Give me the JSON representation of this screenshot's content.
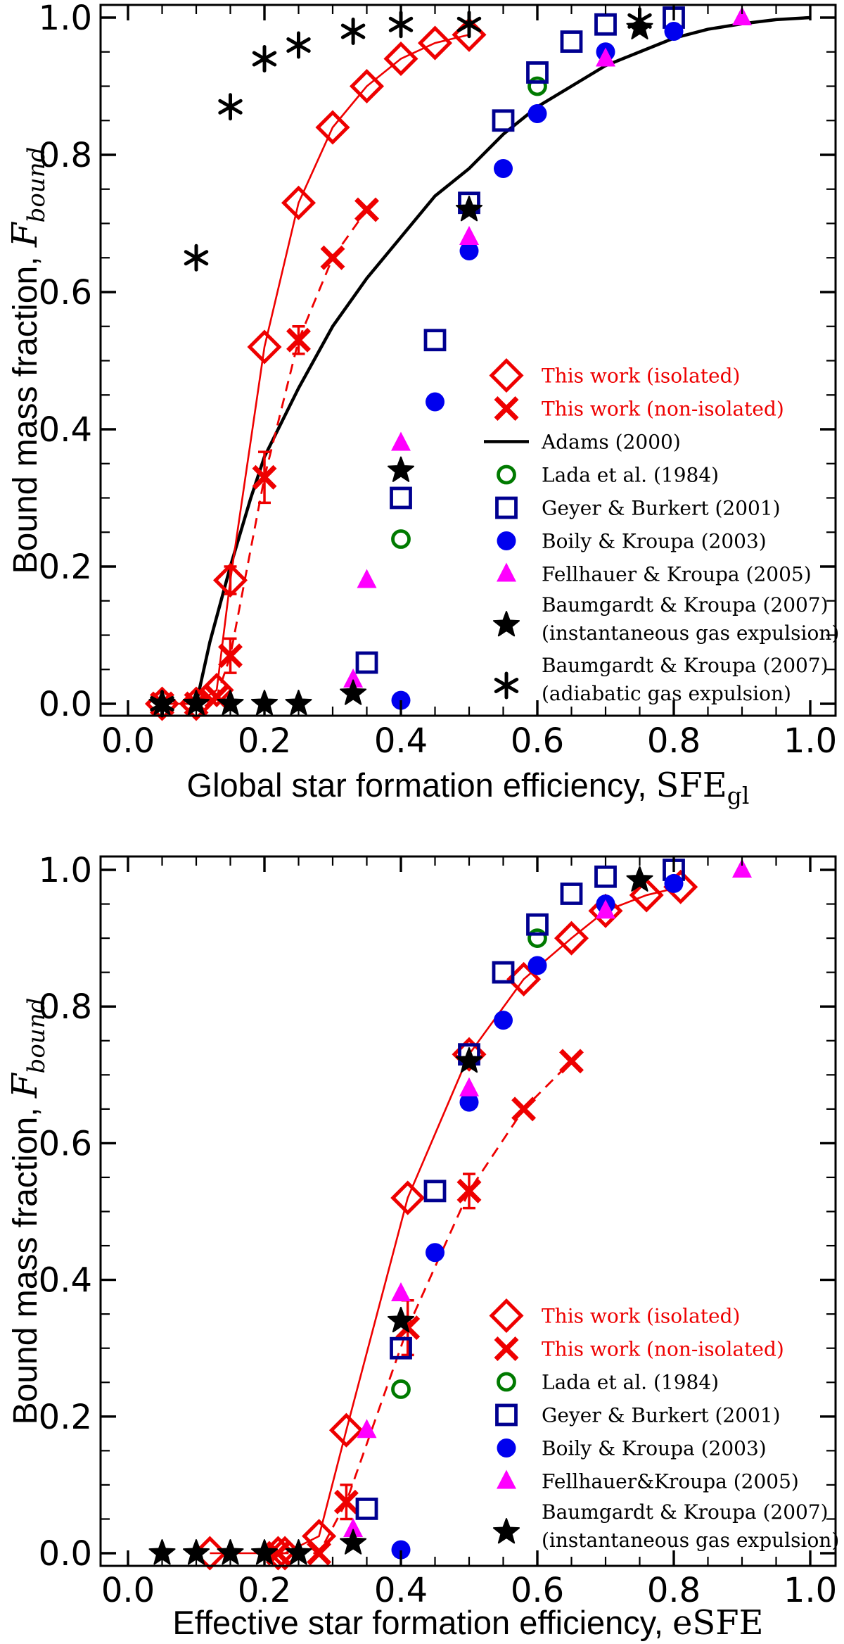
{
  "figure": {
    "background": "#ffffff",
    "colors": {
      "this_work_red": "#ee0000",
      "adams_black": "#000000",
      "lada_green": "#007a00",
      "geyer_navy": "#000090",
      "boily_blue": "#0000ee",
      "fellhauer_magenta": "#ff00ff",
      "baumgardt_black": "#000000",
      "frame": "#000000"
    }
  },
  "chart_data": [
    {
      "type": "scatter",
      "panel": "top",
      "title": "",
      "xlabel_prefix": "Global star formation efficiency, ",
      "xlabel_math": "SFE",
      "xlabel_sub": "gl",
      "ylabel_prefix": "Bound mass fraction, ",
      "ylabel_math": "F",
      "ylabel_sub": "bound",
      "xlim": [
        -0.04,
        1.037
      ],
      "ylim": [
        -0.018,
        1.019
      ],
      "xticks": [
        0.0,
        0.2,
        0.4,
        0.6,
        0.8,
        1.0
      ],
      "xtick_labels": [
        "0.0",
        "0.2",
        "0.4",
        "0.6",
        "0.8",
        "1.0"
      ],
      "yticks": [
        0.0,
        0.2,
        0.4,
        0.6,
        0.8,
        1.0
      ],
      "ytick_labels": [
        "0.0",
        "0.2",
        "0.4",
        "0.6",
        "0.8",
        "1.0"
      ],
      "minor_tick_step": 0.05,
      "grid": false,
      "legend_position": "lower right",
      "series": [
        {
          "name": "Adams (2000)",
          "marker": null,
          "color": "#000000",
          "line": "solid",
          "line_width": 4.5,
          "points": [
            [
              0.1,
              0.0
            ],
            [
              0.12,
              0.09
            ],
            [
              0.15,
              0.2
            ],
            [
              0.18,
              0.3
            ],
            [
              0.2,
              0.36
            ],
            [
              0.25,
              0.46
            ],
            [
              0.3,
              0.55
            ],
            [
              0.35,
              0.62
            ],
            [
              0.4,
              0.68
            ],
            [
              0.45,
              0.74
            ],
            [
              0.5,
              0.78
            ],
            [
              0.55,
              0.83
            ],
            [
              0.6,
              0.87
            ],
            [
              0.65,
              0.9
            ],
            [
              0.7,
              0.93
            ],
            [
              0.75,
              0.95
            ],
            [
              0.8,
              0.97
            ],
            [
              0.85,
              0.983
            ],
            [
              0.9,
              0.991
            ],
            [
              0.95,
              0.997
            ],
            [
              1.0,
              1.0
            ]
          ]
        },
        {
          "name": "This work (isolated)",
          "marker": "diamond",
          "color": "#ee0000",
          "line": "solid",
          "line_width": 2.6,
          "points": [
            [
              0.05,
              0.0
            ],
            [
              0.1,
              0.0
            ],
            [
              0.13,
              0.02
            ],
            [
              0.15,
              0.18
            ],
            [
              0.2,
              0.52
            ],
            [
              0.25,
              0.73
            ],
            [
              0.3,
              0.84
            ],
            [
              0.35,
              0.9
            ],
            [
              0.4,
              0.94
            ],
            [
              0.45,
              0.963
            ],
            [
              0.5,
              0.975
            ]
          ],
          "error_bars": [
            [
              0.15,
              0.18,
              0.02
            ]
          ]
        },
        {
          "name": "This work (non-isolated)",
          "marker": "cross",
          "color": "#ee0000",
          "line": "dashed",
          "line_width": 2.8,
          "points": [
            [
              0.05,
              0.0
            ],
            [
              0.1,
              0.0
            ],
            [
              0.13,
              0.01
            ],
            [
              0.15,
              0.07
            ],
            [
              0.2,
              0.33
            ],
            [
              0.25,
              0.53
            ],
            [
              0.3,
              0.65
            ],
            [
              0.35,
              0.72
            ]
          ],
          "error_bars": [
            [
              0.15,
              0.07,
              0.025
            ],
            [
              0.2,
              0.33,
              0.037
            ],
            [
              0.25,
              0.53,
              0.02
            ]
          ]
        },
        {
          "name": "Lada et al. (1984)",
          "marker": "circle-open",
          "color": "#007a00",
          "line": null,
          "points": [
            [
              0.4,
              0.24
            ],
            [
              0.6,
              0.9
            ]
          ]
        },
        {
          "name": "Geyer & Burkert (2001)",
          "marker": "square-open",
          "color": "#000090",
          "line": null,
          "points": [
            [
              0.35,
              0.06
            ],
            [
              0.4,
              0.3
            ],
            [
              0.45,
              0.53
            ],
            [
              0.5,
              0.73
            ],
            [
              0.55,
              0.85
            ],
            [
              0.6,
              0.92
            ],
            [
              0.65,
              0.965
            ],
            [
              0.7,
              0.99
            ],
            [
              0.8,
              1.0
            ]
          ]
        },
        {
          "name": "Boily & Kroupa (2003)",
          "marker": "circle-fill",
          "color": "#0000ee",
          "line": null,
          "points": [
            [
              0.4,
              0.005
            ],
            [
              0.45,
              0.44
            ],
            [
              0.5,
              0.66
            ],
            [
              0.55,
              0.78
            ],
            [
              0.6,
              0.86
            ],
            [
              0.7,
              0.95
            ],
            [
              0.8,
              0.98
            ]
          ]
        },
        {
          "name": "Fellhauer & Kroupa (2005)",
          "marker": "triangle-fill",
          "color": "#ff00ff",
          "line": null,
          "points": [
            [
              0.33,
              0.035
            ],
            [
              0.35,
              0.18
            ],
            [
              0.4,
              0.38
            ],
            [
              0.5,
              0.68
            ],
            [
              0.7,
              0.94
            ],
            [
              0.9,
              1.0
            ]
          ]
        },
        {
          "name": "Baumgardt & Kroupa (2007) (instantaneous gas expulsion)",
          "marker": "star5",
          "color": "#000000",
          "line": null,
          "points": [
            [
              0.05,
              0.0
            ],
            [
              0.1,
              0.0
            ],
            [
              0.15,
              0.0
            ],
            [
              0.2,
              0.0
            ],
            [
              0.25,
              0.0
            ],
            [
              0.33,
              0.015
            ],
            [
              0.4,
              0.34
            ],
            [
              0.5,
              0.72
            ],
            [
              0.75,
              0.985
            ]
          ]
        },
        {
          "name": "Baumgardt & Kroupa (2007) (adiabatic gas expulsion)",
          "marker": "asterisk6",
          "color": "#000000",
          "line": null,
          "points": [
            [
              0.05,
              0.0
            ],
            [
              0.1,
              0.65
            ],
            [
              0.15,
              0.87
            ],
            [
              0.2,
              0.94
            ],
            [
              0.25,
              0.96
            ],
            [
              0.33,
              0.98
            ],
            [
              0.4,
              0.99
            ],
            [
              0.5,
              0.99
            ],
            [
              0.75,
              0.995
            ]
          ]
        }
      ],
      "legend": [
        {
          "marker": "diamond",
          "color": "#ee0000",
          "text_color": "#ee0000",
          "lines": [
            "This work (isolated)"
          ]
        },
        {
          "marker": "cross",
          "color": "#ee0000",
          "text_color": "#ee0000",
          "lines": [
            "This work (non-isolated)"
          ]
        },
        {
          "marker": "line",
          "color": "#000000",
          "text_color": "#000000",
          "lines": [
            "Adams (2000)"
          ]
        },
        {
          "marker": "circle-open",
          "color": "#007a00",
          "text_color": "#000000",
          "lines": [
            "Lada et al.  (1984)"
          ]
        },
        {
          "marker": "square-open",
          "color": "#000090",
          "text_color": "#000000",
          "lines": [
            "Geyer & Burkert (2001)"
          ]
        },
        {
          "marker": "circle-fill",
          "color": "#0000ee",
          "text_color": "#000000",
          "lines": [
            "Boily & Kroupa (2003)"
          ]
        },
        {
          "marker": "triangle-fill",
          "color": "#ff00ff",
          "text_color": "#000000",
          "lines": [
            "Fellhauer & Kroupa (2005)"
          ]
        },
        {
          "marker": "star5",
          "color": "#000000",
          "text_color": "#000000",
          "lines": [
            "Baumgardt & Kroupa (2007)",
            "(instantaneous gas expulsion)"
          ]
        },
        {
          "marker": "asterisk6",
          "color": "#000000",
          "text_color": "#000000",
          "lines": [
            "Baumgardt & Kroupa (2007)",
            "(adiabatic gas expulsion)"
          ]
        }
      ]
    },
    {
      "type": "scatter",
      "panel": "bottom",
      "title": "",
      "xlabel_prefix": "Effective star formation efficiency, ",
      "xlabel_math": "eSFE",
      "xlabel_sub": "",
      "ylabel_prefix": "Bound mass fraction, ",
      "ylabel_math": "F",
      "ylabel_sub": "bound",
      "xlim": [
        -0.04,
        1.037
      ],
      "ylim": [
        -0.018,
        1.019
      ],
      "xticks": [
        0.0,
        0.2,
        0.4,
        0.6,
        0.8,
        1.0
      ],
      "xtick_labels": [
        "0.0",
        "0.2",
        "0.4",
        "0.6",
        "0.8",
        "1.0"
      ],
      "yticks": [
        0.0,
        0.2,
        0.4,
        0.6,
        0.8,
        1.0
      ],
      "ytick_labels": [
        "0.0",
        "0.2",
        "0.4",
        "0.6",
        "0.8",
        "1.0"
      ],
      "minor_tick_step": 0.05,
      "grid": false,
      "legend_position": "lower right",
      "series": [
        {
          "name": "This work (isolated)",
          "marker": "diamond",
          "color": "#ee0000",
          "line": "solid",
          "line_width": 2.6,
          "points": [
            [
              0.12,
              0.0
            ],
            [
              0.22,
              0.0
            ],
            [
              0.23,
              0.0
            ],
            [
              0.28,
              0.025
            ],
            [
              0.32,
              0.18
            ],
            [
              0.41,
              0.52
            ],
            [
              0.5,
              0.73
            ],
            [
              0.58,
              0.84
            ],
            [
              0.65,
              0.9
            ],
            [
              0.7,
              0.94
            ],
            [
              0.76,
              0.963
            ],
            [
              0.81,
              0.975
            ]
          ],
          "error_bars": []
        },
        {
          "name": "This work (non-isolated)",
          "marker": "cross",
          "color": "#ee0000",
          "line": "dashed",
          "line_width": 2.8,
          "points": [
            [
              0.22,
              0.0
            ],
            [
              0.28,
              0.0
            ],
            [
              0.32,
              0.075
            ],
            [
              0.41,
              0.33
            ],
            [
              0.5,
              0.53
            ],
            [
              0.58,
              0.65
            ],
            [
              0.65,
              0.72
            ]
          ],
          "error_bars": [
            [
              0.32,
              0.075,
              0.025
            ],
            [
              0.41,
              0.33,
              0.04
            ],
            [
              0.5,
              0.53,
              0.025
            ]
          ]
        },
        {
          "name": "Lada et al. (1984)",
          "marker": "circle-open",
          "color": "#007a00",
          "line": null,
          "points": [
            [
              0.4,
              0.24
            ],
            [
              0.6,
              0.9
            ]
          ]
        },
        {
          "name": "Geyer & Burkert (2001)",
          "marker": "square-open",
          "color": "#000090",
          "line": null,
          "points": [
            [
              0.35,
              0.065
            ],
            [
              0.4,
              0.3
            ],
            [
              0.45,
              0.53
            ],
            [
              0.5,
              0.73
            ],
            [
              0.55,
              0.85
            ],
            [
              0.6,
              0.92
            ],
            [
              0.65,
              0.965
            ],
            [
              0.7,
              0.99
            ],
            [
              0.8,
              1.0
            ]
          ]
        },
        {
          "name": "Boily & Kroupa (2003)",
          "marker": "circle-fill",
          "color": "#0000ee",
          "line": null,
          "points": [
            [
              0.4,
              0.005
            ],
            [
              0.45,
              0.44
            ],
            [
              0.5,
              0.66
            ],
            [
              0.55,
              0.78
            ],
            [
              0.6,
              0.86
            ],
            [
              0.7,
              0.95
            ],
            [
              0.8,
              0.98
            ]
          ]
        },
        {
          "name": "Fellhauer&Kroupa (2005)",
          "marker": "triangle-fill",
          "color": "#ff00ff",
          "line": null,
          "points": [
            [
              0.33,
              0.035
            ],
            [
              0.35,
              0.18
            ],
            [
              0.4,
              0.38
            ],
            [
              0.5,
              0.68
            ],
            [
              0.7,
              0.94
            ],
            [
              0.9,
              1.0
            ]
          ]
        },
        {
          "name": "Baumgardt & Kroupa (2007) (instantaneous gas expulsion)",
          "marker": "star5",
          "color": "#000000",
          "line": null,
          "points": [
            [
              0.05,
              0.0
            ],
            [
              0.1,
              0.0
            ],
            [
              0.15,
              0.0
            ],
            [
              0.2,
              0.0
            ],
            [
              0.25,
              0.0
            ],
            [
              0.33,
              0.015
            ],
            [
              0.4,
              0.34
            ],
            [
              0.5,
              0.72
            ],
            [
              0.75,
              0.985
            ]
          ]
        }
      ],
      "legend": [
        {
          "marker": "diamond",
          "color": "#ee0000",
          "text_color": "#ee0000",
          "lines": [
            "This work (isolated)"
          ]
        },
        {
          "marker": "cross",
          "color": "#ee0000",
          "text_color": "#ee0000",
          "lines": [
            "This work (non-isolated)"
          ]
        },
        {
          "marker": "circle-open",
          "color": "#007a00",
          "text_color": "#000000",
          "lines": [
            "Lada et al.  (1984)"
          ]
        },
        {
          "marker": "square-open",
          "color": "#000090",
          "text_color": "#000000",
          "lines": [
            "Geyer & Burkert (2001)"
          ]
        },
        {
          "marker": "circle-fill",
          "color": "#0000ee",
          "text_color": "#000000",
          "lines": [
            "Boily & Kroupa (2003)"
          ]
        },
        {
          "marker": "triangle-fill",
          "color": "#ff00ff",
          "text_color": "#000000",
          "lines": [
            "Fellhauer&Kroupa (2005)"
          ]
        },
        {
          "marker": "star5",
          "color": "#000000",
          "text_color": "#000000",
          "lines": [
            "Baumgardt & Kroupa (2007)",
            "(instantaneous gas expulsion)"
          ]
        }
      ]
    }
  ]
}
